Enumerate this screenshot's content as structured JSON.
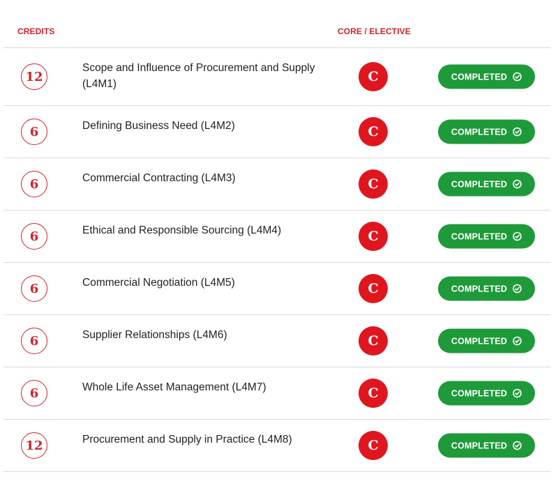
{
  "header": {
    "credits_label": "CREDITS",
    "core_label": "CORE / ELECTIVE"
  },
  "colors": {
    "accent_red": "#d3222a",
    "core_badge_red": "#e0161f",
    "completed_green": "#1e9a3a",
    "divider": "#d9d9d9"
  },
  "icons": {
    "status": "check-circle-icon"
  },
  "modules": [
    {
      "credits": "12",
      "title": "Scope and Influence of Procurement and Supply (L4M1)",
      "core": "C",
      "status": "COMPLETED"
    },
    {
      "credits": "6",
      "title": "Defining Business Need (L4M2)",
      "core": "C",
      "status": "COMPLETED"
    },
    {
      "credits": "6",
      "title": "Commercial Contracting (L4M3)",
      "core": "C",
      "status": "COMPLETED"
    },
    {
      "credits": "6",
      "title": "Ethical and Responsible Sourcing (L4M4)",
      "core": "C",
      "status": "COMPLETED"
    },
    {
      "credits": "6",
      "title": "Commercial Negotiation (L4M5)",
      "core": "C",
      "status": "COMPLETED"
    },
    {
      "credits": "6",
      "title": "Supplier Relationships (L4M6)",
      "core": "C",
      "status": "COMPLETED"
    },
    {
      "credits": "6",
      "title": "Whole Life Asset Management (L4M7)",
      "core": "C",
      "status": "COMPLETED"
    },
    {
      "credits": "12",
      "title": "Procurement and Supply in Practice (L4M8)",
      "core": "C",
      "status": "COMPLETED"
    }
  ]
}
